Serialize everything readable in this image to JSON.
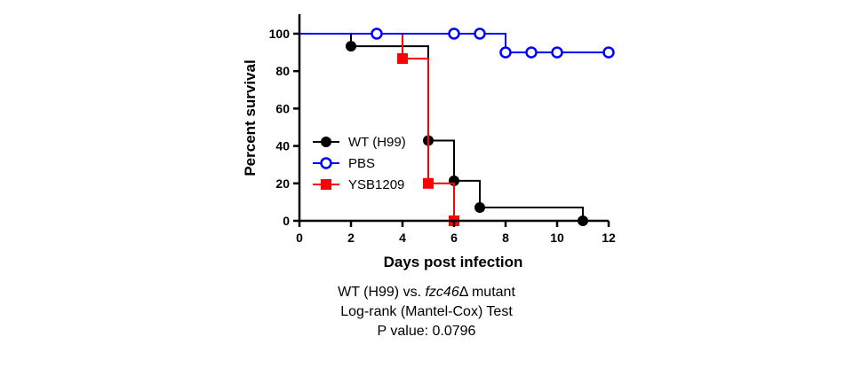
{
  "chart_data": {
    "type": "line",
    "step": true,
    "xlabel": "Days post infection",
    "ylabel": "Percent survival",
    "xlim": [
      0,
      12
    ],
    "ylim": [
      0,
      100
    ],
    "xticks": [
      0,
      2,
      4,
      6,
      8,
      10,
      12
    ],
    "yticks": [
      0,
      20,
      40,
      60,
      80,
      100
    ],
    "legend_position": "middle-left",
    "series": [
      {
        "name": "WT (H99)",
        "color": "#000000",
        "marker": "filled-circle",
        "points": [
          {
            "x": 0,
            "y": 100
          },
          {
            "x": 2,
            "y": 93.3
          },
          {
            "x": 5,
            "y": 42.9
          },
          {
            "x": 6,
            "y": 21.4
          },
          {
            "x": 7,
            "y": 7.1
          },
          {
            "x": 11,
            "y": 0
          }
        ],
        "step_end_x": 11
      },
      {
        "name": "PBS",
        "color": "#0000ff",
        "marker": "open-circle",
        "points": [
          {
            "x": 0,
            "y": 100
          },
          {
            "x": 3,
            "y": 100
          },
          {
            "x": 6,
            "y": 100
          },
          {
            "x": 7,
            "y": 100
          },
          {
            "x": 8,
            "y": 90
          },
          {
            "x": 9,
            "y": 90
          },
          {
            "x": 10,
            "y": 90
          },
          {
            "x": 12,
            "y": 90
          }
        ],
        "step_end_x": 12
      },
      {
        "name": "YSB1209",
        "color": "#ff0000",
        "marker": "filled-square",
        "points": [
          {
            "x": 0,
            "y": 100
          },
          {
            "x": 4,
            "y": 86.7
          },
          {
            "x": 5,
            "y": 20
          },
          {
            "x": 6,
            "y": 0
          }
        ],
        "step_end_x": 6
      }
    ]
  },
  "caption": {
    "line1_prefix": "WT (H99) vs. ",
    "line1_italic": "fzc46",
    "line1_suffix": "Δ mutant",
    "line2": "Log-rank (Mantel-Cox) Test",
    "line3": "P value: 0.0796"
  }
}
